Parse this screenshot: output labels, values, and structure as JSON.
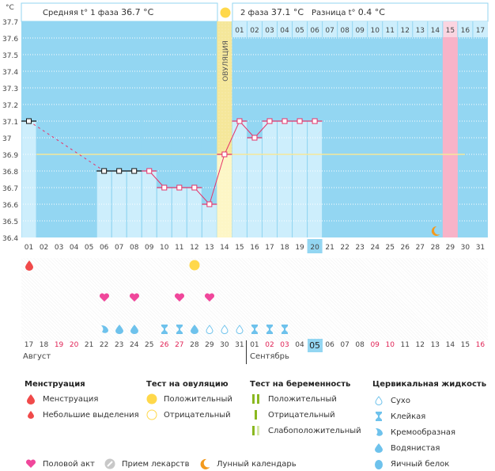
{
  "header": {
    "unit_label": "°C",
    "phase1_label": "Средняя t° 1 фаза",
    "phase1_value": "36.7 °C",
    "phase2_label": "2 фаза",
    "phase2_value": "37.1 °C",
    "diff_label": "Разница t°",
    "diff_value": "0.4 °C",
    "ovulation_label": "ОВУЛЯЦИЯ"
  },
  "colors": {
    "chart_bg": "#93d6f2",
    "recorded_bg": "#cdeefc",
    "ovulation_band": "#f5e79a",
    "ovulation_band_lower": "#fdf6c6",
    "next_period": "#f8b3c8",
    "line": "#e63369",
    "coverline": "#f5e79a",
    "menstruation": "#f04a4a",
    "heart": "#f0479b",
    "ovulation_test_positive": "#ffd84a",
    "pregnancy_test": "#8ab820",
    "cervical": "#6ec2ec",
    "moon": "#f39a1e",
    "weekend_date": "#e02255",
    "today_bg": "#93d6f2"
  },
  "chart_data": {
    "type": "line",
    "title": "",
    "ylabel": "°C",
    "ylim": [
      36.4,
      37.7
    ],
    "yticks": [
      "37.7",
      "37.6",
      "37.5",
      "37.4",
      "37.3",
      "37.2",
      "37.1",
      "37",
      "36.9",
      "36.8",
      "36.7",
      "36.6",
      "36.5",
      "36.4"
    ],
    "cycle_days": [
      "01",
      "02",
      "03",
      "04",
      "05",
      "06",
      "07",
      "08",
      "09",
      "10",
      "11",
      "12",
      "13",
      "14",
      "15",
      "16",
      "17",
      "18",
      "19",
      "20",
      "21",
      "22",
      "23",
      "24",
      "25",
      "26",
      "27",
      "28",
      "29",
      "30",
      "31"
    ],
    "post_ovulation_days": [
      "01",
      "02",
      "03",
      "04",
      "05",
      "06",
      "07",
      "08",
      "09",
      "10",
      "11",
      "12",
      "13",
      "14",
      "15",
      "16",
      "17"
    ],
    "series": [
      {
        "name": "Базальная температура",
        "points": [
          {
            "day": 1,
            "value": 37.1,
            "style": "black"
          },
          {
            "day": 6,
            "value": 36.8,
            "style": "black"
          },
          {
            "day": 7,
            "value": 36.8,
            "style": "black"
          },
          {
            "day": 8,
            "value": 36.8,
            "style": "black"
          },
          {
            "day": 9,
            "value": 36.8,
            "style": "pink"
          },
          {
            "day": 10,
            "value": 36.7,
            "style": "pink"
          },
          {
            "day": 11,
            "value": 36.7,
            "style": "pink"
          },
          {
            "day": 12,
            "value": 36.7,
            "style": "pink"
          },
          {
            "day": 13,
            "value": 36.6,
            "style": "pink"
          },
          {
            "day": 14,
            "value": 36.9,
            "style": "pink"
          },
          {
            "day": 15,
            "value": 37.1,
            "style": "pink"
          },
          {
            "day": 16,
            "value": 37.0,
            "style": "pink"
          },
          {
            "day": 17,
            "value": 37.1,
            "style": "pink"
          },
          {
            "day": 18,
            "value": 37.1,
            "style": "pink"
          },
          {
            "day": 19,
            "value": 37.1,
            "style": "pink"
          },
          {
            "day": 20,
            "value": 37.1,
            "style": "pink"
          }
        ],
        "dashed_segment": [
          1,
          6
        ]
      }
    ],
    "coverline": 36.9,
    "ovulation_day": 14,
    "next_period_day": 29,
    "current_day": 20,
    "moon_day": 28,
    "grid": true
  },
  "events": {
    "menstruation": [
      1
    ],
    "ovulation_test_positive": [
      12
    ],
    "intercourse": [
      6,
      8,
      11,
      13
    ],
    "cervical_fluid": [
      {
        "day": 6,
        "type": "creamy"
      },
      {
        "day": 7,
        "type": "watery"
      },
      {
        "day": 8,
        "type": "watery"
      },
      {
        "day": 10,
        "type": "sticky"
      },
      {
        "day": 11,
        "type": "sticky"
      },
      {
        "day": 12,
        "type": "watery"
      },
      {
        "day": 13,
        "type": "dry"
      },
      {
        "day": 14,
        "type": "dry"
      },
      {
        "day": 15,
        "type": "dry"
      },
      {
        "day": 16,
        "type": "sticky"
      },
      {
        "day": 17,
        "type": "sticky"
      },
      {
        "day": 18,
        "type": "sticky"
      }
    ]
  },
  "calendar": {
    "dates": [
      {
        "d": "17",
        "red": false
      },
      {
        "d": "18",
        "red": false
      },
      {
        "d": "19",
        "red": true
      },
      {
        "d": "20",
        "red": true
      },
      {
        "d": "21",
        "red": false
      },
      {
        "d": "22",
        "red": false
      },
      {
        "d": "23",
        "red": false
      },
      {
        "d": "24",
        "red": false
      },
      {
        "d": "25",
        "red": false
      },
      {
        "d": "26",
        "red": true
      },
      {
        "d": "27",
        "red": true
      },
      {
        "d": "28",
        "red": false
      },
      {
        "d": "29",
        "red": false
      },
      {
        "d": "30",
        "red": false
      },
      {
        "d": "31",
        "red": false
      },
      {
        "d": "01",
        "red": false
      },
      {
        "d": "02",
        "red": true
      },
      {
        "d": "03",
        "red": true
      },
      {
        "d": "04",
        "red": false
      },
      {
        "d": "05",
        "red": false,
        "today": true
      },
      {
        "d": "06",
        "red": false
      },
      {
        "d": "07",
        "red": false
      },
      {
        "d": "08",
        "red": false
      },
      {
        "d": "09",
        "red": true
      },
      {
        "d": "10",
        "red": true
      },
      {
        "d": "11",
        "red": false
      },
      {
        "d": "12",
        "red": false
      },
      {
        "d": "13",
        "red": false
      },
      {
        "d": "14",
        "red": false
      },
      {
        "d": "15",
        "red": false
      },
      {
        "d": "16",
        "red": true
      }
    ],
    "month1": "Август",
    "month2": "Сентябрь"
  },
  "legend": {
    "menstruation": {
      "title": "Менструация",
      "items": [
        "Менструация",
        "Небольшие выделения"
      ]
    },
    "ovulation_test": {
      "title": "Тест на овуляцию",
      "items": [
        "Положительный",
        "Отрицательный"
      ]
    },
    "pregnancy_test": {
      "title": "Тест на беременность",
      "items": [
        "Положительный",
        "Отрицательный",
        "Слабоположительный"
      ]
    },
    "cervical": {
      "title": "Цервикальная жидкость",
      "items": [
        "Сухо",
        "Клейкая",
        "Кремообразная",
        "Водянистая",
        "Яичный белок"
      ]
    },
    "other": [
      "Половой акт",
      "Прием лекарств",
      "Лунный календарь"
    ]
  }
}
